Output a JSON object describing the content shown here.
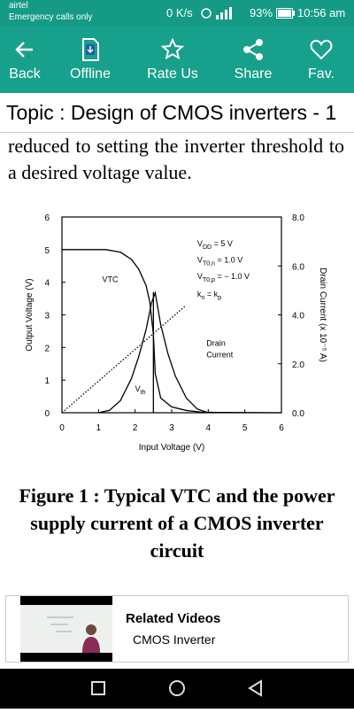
{
  "status_bar": {
    "carrier": "airtel",
    "carrier_note": "Emergency calls only",
    "speed": "0 K/s",
    "battery": "93%",
    "time": "10:56 am"
  },
  "toolbar": {
    "items": [
      "Back",
      "Offline",
      "Rate Us",
      "Share",
      "Fav."
    ]
  },
  "topic": "Topic : Design of CMOS inverters - 1",
  "body_text": "reduced to setting the inverter threshold to a desired voltage value.",
  "figure": {
    "chart_data": {
      "type": "line",
      "xlabel": "Input Voltage (V)",
      "ylabel": "Output Voltage (V)",
      "y2label": "Drain Current (x 10⁻⁵ A)",
      "xlim": [
        0,
        6
      ],
      "xticks": [
        0,
        1,
        2,
        3,
        4,
        5,
        6
      ],
      "ylim": [
        0,
        6
      ],
      "yticks": [
        0,
        1,
        2,
        3,
        4,
        5,
        6
      ],
      "y2lim": [
        0,
        8
      ],
      "y2ticks": [
        {
          "value": 0,
          "label": "0.0"
        },
        {
          "value": 2,
          "label": "2.0"
        },
        {
          "value": 4,
          "label": "4.0"
        },
        {
          "value": 6,
          "label": "6.0"
        },
        {
          "value": 8,
          "label": "8.0"
        }
      ],
      "series": [
        {
          "color": "#000000",
          "style": "solid",
          "x": [
            0,
            1.2,
            1.6,
            1.9,
            2.1,
            2.3,
            2.4,
            2.5,
            2.55,
            2.7,
            3.0,
            3.4,
            3.8,
            4.2,
            6
          ],
          "values": [
            5,
            5,
            4.92,
            4.7,
            4.4,
            3.9,
            3.4,
            2.4,
            1.2,
            0.45,
            0.18,
            0.07,
            0.02,
            0.01,
            0
          ]
        },
        {
          "color": "#000000",
          "style": "solid",
          "axis": "y2",
          "x": [
            1.0,
            1.3,
            1.6,
            1.9,
            2.1,
            2.3,
            2.45,
            2.55,
            2.7,
            2.9,
            3.1,
            3.4,
            3.7,
            4.0
          ],
          "values": [
            0,
            0.1,
            0.5,
            1.4,
            2.3,
            3.4,
            4.5,
            4.9,
            3.6,
            2.4,
            1.5,
            0.6,
            0.15,
            0
          ]
        },
        {
          "color": "#000000",
          "style": "dotted",
          "x": [
            0,
            3.4
          ],
          "values": [
            0,
            3.3
          ]
        },
        {
          "color": "#000000",
          "style": "solid",
          "x": [
            2.5,
            2.5
          ],
          "values": [
            0,
            3.7
          ]
        }
      ],
      "annotations": [
        {
          "main": "VTC",
          "x": 1.1,
          "y": 4.0
        },
        {
          "main": "V",
          "sub": "DD",
          "rest": " = 5 V",
          "x": 3.7,
          "y": 5.1
        },
        {
          "main": "V",
          "sub": "T0,n",
          "rest": " = 1.0 V",
          "x": 3.7,
          "y": 4.6
        },
        {
          "main": "V",
          "sub": "T0,p",
          "rest": " = − 1.0 V",
          "x": 3.7,
          "y": 4.1
        },
        {
          "main": "k",
          "sub": "n",
          "rest": " = k",
          "sub2": "p",
          "x": 3.7,
          "y": 3.55
        },
        {
          "main": "Drain",
          "x": 3.95,
          "y": 2.05
        },
        {
          "main": "Current",
          "x": 3.95,
          "y": 1.7
        },
        {
          "main": "V",
          "sub": "th",
          "x": 2.0,
          "y": 0.65
        }
      ]
    }
  },
  "caption": "Figure 1 : Typical VTC and the power supply current of a CMOS inverter circuit",
  "related": {
    "title": "Related Videos",
    "item": "CMOS Inverter"
  }
}
